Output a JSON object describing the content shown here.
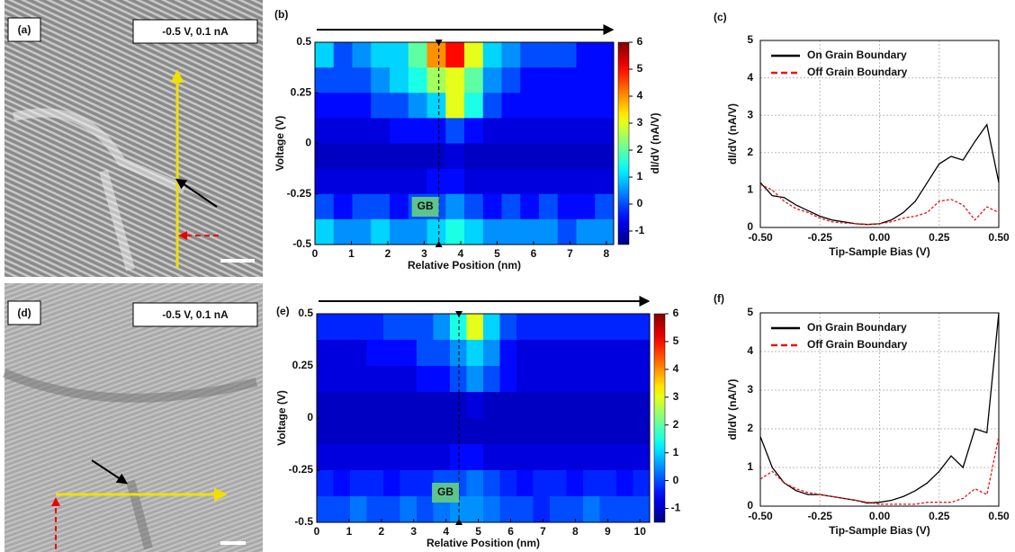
{
  "chart_data": [
    {
      "type": "image",
      "panel_label": "(a)",
      "annotation": "-0.5 V, 0.1 nA"
    },
    {
      "type": "heatmap",
      "panel_label": "(b)",
      "xlabel": "Relative Position (nm)",
      "ylabel": "Voltage (V)",
      "colorbar_label": "dI/dV (nA/V)",
      "xlim": [
        0,
        8.2
      ],
      "ylim": [
        -0.5,
        0.5
      ],
      "xticks": [
        0,
        1,
        2,
        3,
        4,
        5,
        6,
        7,
        8
      ],
      "yticks": [
        -0.5,
        -0.25,
        0,
        0.25,
        0.5
      ],
      "zlim": [
        -1.5,
        6
      ],
      "zticks": [
        -1,
        0,
        1,
        2,
        3,
        4,
        5,
        6
      ],
      "gb_x": 3.4,
      "gb_label": "GB",
      "z": [
        [
          1,
          0,
          0.5,
          1,
          1,
          2,
          4,
          5,
          3,
          1,
          0.5,
          0,
          0,
          0,
          -0.5,
          -0.5
        ],
        [
          0,
          0,
          0,
          0.5,
          1,
          1.5,
          2.5,
          3,
          2,
          0.5,
          0,
          -0.5,
          -0.5,
          -0.5,
          -0.5,
          -0.5
        ],
        [
          -0.5,
          -0.5,
          -0.5,
          0,
          0,
          0.5,
          1,
          3,
          1.5,
          0,
          -0.5,
          -0.5,
          -0.5,
          -0.5,
          -0.5,
          -0.5
        ],
        [
          -0.8,
          -0.8,
          -0.8,
          -0.8,
          -0.5,
          -0.5,
          -0.5,
          0,
          -0.5,
          -0.8,
          -0.8,
          -0.8,
          -0.8,
          -0.8,
          -0.8,
          -0.8
        ],
        [
          -1,
          -1,
          -1,
          -1,
          -1,
          -1,
          -1,
          -0.8,
          -1,
          -1,
          -1,
          -1,
          -1,
          -1,
          -1,
          -1
        ],
        [
          -0.8,
          -0.8,
          -0.8,
          -0.8,
          -0.8,
          -0.8,
          -0.5,
          -0.5,
          -0.8,
          -0.8,
          -0.8,
          -0.8,
          -0.8,
          -0.8,
          -0.8,
          -0.8
        ],
        [
          0,
          -0.5,
          0,
          0,
          -0.5,
          0,
          0,
          0.5,
          0,
          -0.5,
          0,
          -0.5,
          0,
          -0.5,
          -0.5,
          0
        ],
        [
          1,
          0.5,
          0.5,
          1,
          0.5,
          0.5,
          1,
          1.5,
          1,
          0.5,
          0.5,
          0.5,
          0.5,
          0,
          0.5,
          0.5
        ]
      ]
    },
    {
      "type": "line",
      "panel_label": "(c)",
      "xlabel": "Tip-Sample Bias (V)",
      "ylabel": "dI/dV (nA/V)",
      "xlim": [
        -0.5,
        0.5
      ],
      "ylim": [
        0,
        5
      ],
      "xticks": [
        {
          "value": -0.5,
          "label": "-0.50"
        },
        -0.25,
        {
          "value": 0,
          "label": "0.00"
        },
        0.25,
        {
          "value": 0.5,
          "label": "0.50"
        }
      ],
      "yticks": [
        0,
        1,
        2,
        3,
        4,
        5
      ],
      "grid": true,
      "x": [
        -0.5,
        -0.45,
        -0.4,
        -0.35,
        -0.3,
        -0.25,
        -0.2,
        -0.15,
        -0.1,
        -0.05,
        0,
        0.05,
        0.1,
        0.15,
        0.2,
        0.25,
        0.3,
        0.35,
        0.4,
        0.45,
        0.5
      ],
      "series": [
        {
          "name": "On Grain Boundary",
          "color": "#000000",
          "linestyle": "solid",
          "values": [
            1.2,
            0.85,
            0.8,
            0.6,
            0.45,
            0.3,
            0.2,
            0.15,
            0.1,
            0.08,
            0.1,
            0.2,
            0.4,
            0.7,
            1.2,
            1.7,
            1.9,
            1.8,
            2.3,
            2.75,
            1.2
          ]
        },
        {
          "name": "Off Grain Boundary",
          "color": "#ee1111",
          "linestyle": "dashed",
          "values": [
            1.15,
            1.0,
            0.7,
            0.5,
            0.4,
            0.25,
            0.15,
            0.12,
            0.1,
            0.08,
            0.1,
            0.15,
            0.25,
            0.3,
            0.4,
            0.7,
            0.75,
            0.6,
            0.2,
            0.55,
            0.4
          ]
        }
      ]
    },
    {
      "type": "image",
      "panel_label": "(d)",
      "annotation": "-0.5 V, 0.1 nA"
    },
    {
      "type": "heatmap",
      "panel_label": "(e)",
      "xlabel": "Relative Position (nm)",
      "ylabel": "Voltage (V)",
      "xlim": [
        0,
        10.3
      ],
      "ylim": [
        -0.5,
        0.5
      ],
      "xticks": [
        0,
        1,
        2,
        3,
        4,
        5,
        6,
        7,
        8,
        9,
        10
      ],
      "yticks": [
        -0.5,
        -0.25,
        0,
        0.25,
        0.5
      ],
      "zlim": [
        -1.5,
        6
      ],
      "zticks": [
        -1,
        0,
        1,
        2,
        3,
        4,
        5,
        6
      ],
      "gb_x": 4.4,
      "gb_label": "GB",
      "z": [
        [
          -0.3,
          -0.3,
          -0.3,
          -0.3,
          0,
          0,
          0,
          0.5,
          1.5,
          3,
          1,
          0,
          -0.3,
          -0.3,
          -0.3,
          -0.3,
          -0.3,
          -0.3,
          -0.3,
          -0.3
        ],
        [
          -0.8,
          -0.8,
          -0.8,
          -0.5,
          -0.5,
          -0.5,
          0,
          0,
          0.5,
          1,
          0.5,
          -0.5,
          -0.8,
          -0.8,
          -0.8,
          -0.8,
          -0.8,
          -0.8,
          -0.8,
          -0.8
        ],
        [
          -0.8,
          -0.8,
          -0.8,
          -0.8,
          -0.8,
          -0.8,
          -0.5,
          -0.5,
          0,
          0.5,
          0,
          -0.5,
          -0.8,
          -0.8,
          -0.8,
          -0.8,
          -0.8,
          -0.8,
          -0.8,
          -0.8
        ],
        [
          -1,
          -1,
          -1,
          -1,
          -1,
          -1,
          -1,
          -1,
          -1,
          -0.8,
          -1,
          -1,
          -1,
          -1,
          -1,
          -1,
          -1,
          -1,
          -1,
          -1
        ],
        [
          -1,
          -1,
          -1,
          -1,
          -1,
          -1,
          -1,
          -1,
          -1,
          -1,
          -1,
          -1,
          -1,
          -1,
          -1,
          -1,
          -1,
          -1,
          -1,
          -1
        ],
        [
          -0.8,
          -0.8,
          -0.8,
          -0.8,
          -0.8,
          -0.8,
          -0.8,
          -0.8,
          -0.5,
          -0.5,
          -0.8,
          -0.8,
          -0.8,
          -0.8,
          -0.8,
          -0.8,
          -0.8,
          -0.8,
          -0.8,
          -0.8
        ],
        [
          -0.3,
          -0.5,
          -0.3,
          -0.3,
          -0.5,
          -0.3,
          -0.3,
          0,
          0,
          0.3,
          0,
          -0.3,
          -0.5,
          -0.3,
          -0.3,
          -0.5,
          -0.3,
          -0.3,
          -0.5,
          -0.3
        ],
        [
          0,
          0,
          0.3,
          0,
          0,
          0.3,
          0,
          0.3,
          0.5,
          0.5,
          0.3,
          0,
          0,
          -0.3,
          0,
          0,
          0.3,
          0,
          0,
          0
        ]
      ]
    },
    {
      "type": "line",
      "panel_label": "(f)",
      "xlabel": "Tip-Sample Bias (V)",
      "ylabel": "dI/dV (nA/V)",
      "xlim": [
        -0.5,
        0.5
      ],
      "ylim": [
        0,
        5
      ],
      "xticks": [
        {
          "value": -0.5,
          "label": "-0.50"
        },
        -0.25,
        {
          "value": 0,
          "label": "0.00"
        },
        0.25,
        {
          "value": 0.5,
          "label": "0.50"
        }
      ],
      "yticks": [
        0,
        1,
        2,
        3,
        4,
        5
      ],
      "grid": true,
      "x": [
        -0.5,
        -0.45,
        -0.4,
        -0.35,
        -0.3,
        -0.25,
        -0.2,
        -0.15,
        -0.1,
        -0.05,
        0,
        0.05,
        0.1,
        0.15,
        0.2,
        0.25,
        0.3,
        0.35,
        0.4,
        0.45,
        0.5
      ],
      "series": [
        {
          "name": "On Grain Boundary",
          "color": "#000000",
          "linestyle": "solid",
          "values": [
            1.8,
            1.0,
            0.6,
            0.4,
            0.3,
            0.3,
            0.25,
            0.2,
            0.15,
            0.08,
            0.1,
            0.15,
            0.25,
            0.4,
            0.6,
            0.9,
            1.3,
            1.0,
            2.0,
            1.9,
            5.0
          ]
        },
        {
          "name": "Off Grain Boundary",
          "color": "#ee1111",
          "linestyle": "dashed",
          "values": [
            0.7,
            0.9,
            0.6,
            0.45,
            0.35,
            0.3,
            0.25,
            0.2,
            0.15,
            0.1,
            0.05,
            0.05,
            0.05,
            0.05,
            0.1,
            0.1,
            0.1,
            0.2,
            0.45,
            0.3,
            1.8
          ]
        }
      ]
    }
  ]
}
